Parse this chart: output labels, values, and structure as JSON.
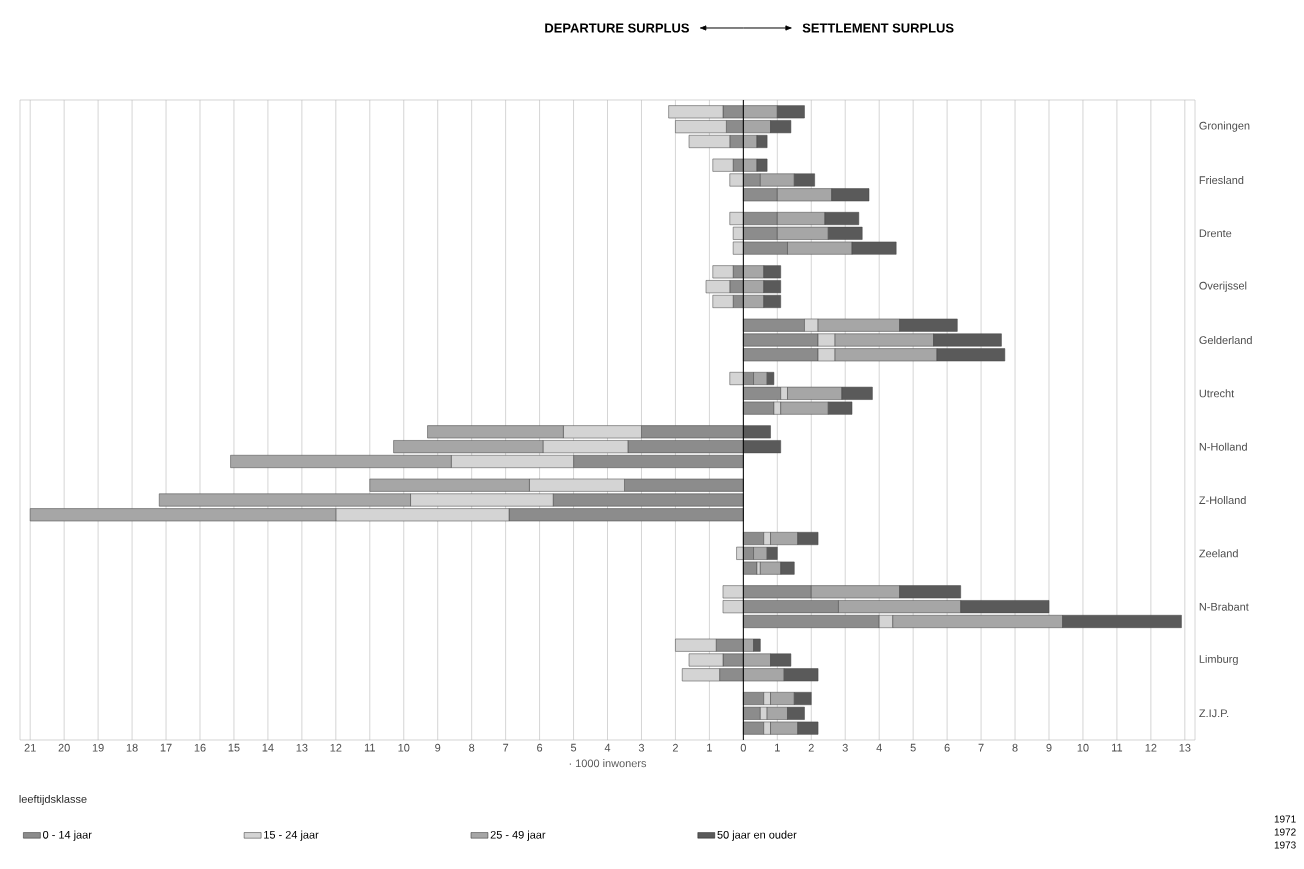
{
  "chart_data": {
    "type": "bar",
    "orientation": "horizontal",
    "stacked": true,
    "categories": [
      null,
      "Groningen",
      null,
      null,
      "Friesland",
      null,
      null,
      "Drente",
      null,
      null,
      "Overijssel",
      null,
      null,
      "Gelderland",
      null,
      null,
      "Utrecht",
      null,
      null,
      "N-Holland",
      null,
      null,
      "Z-Holland",
      null,
      null,
      "Zeeland",
      null,
      null,
      "N-Brabant",
      null,
      null,
      "Limburg",
      null,
      null,
      "Z.IJ.P.",
      null
    ],
    "series": [
      {
        "name": "0 - 14 jaar",
        "color": "#8c8c8c",
        "values": [
          -0.6,
          -0.5,
          -0.4,
          -0.3,
          0.5,
          1.0,
          1.0,
          1.0,
          1.3,
          -0.3,
          -0.4,
          -0.3,
          1.8,
          2.2,
          2.2,
          0.3,
          1.1,
          0.9,
          -3.0,
          -3.4,
          -5.0,
          -3.5,
          -5.6,
          -6.9,
          0.6,
          0.3,
          0.4,
          2.0,
          2.8,
          4.0,
          -0.8,
          -0.6,
          -0.7,
          0.6,
          0.5,
          0.6
        ]
      },
      {
        "name": "15 - 24 jaar",
        "color": "#d4d4d4",
        "values": [
          -1.6,
          -1.5,
          -1.2,
          -0.6,
          -0.4,
          0,
          -0.4,
          -0.3,
          -0.3,
          -0.6,
          -0.7,
          -0.6,
          0.4,
          0.5,
          0.5,
          -0.4,
          0.2,
          0.2,
          -2.3,
          -2.5,
          -3.6,
          -2.8,
          -4.2,
          -5.1,
          0.2,
          -0.2,
          0.1,
          -0.6,
          -0.6,
          0.4,
          -1.2,
          -1.0,
          -1.1,
          0.2,
          0.2,
          0.2
        ]
      },
      {
        "name": "25 - 49 jaar",
        "color": "#a6a6a6",
        "values": [
          1.0,
          0.8,
          0.4,
          0.4,
          1.0,
          1.6,
          1.4,
          1.5,
          1.9,
          0.6,
          0.6,
          0.6,
          2.4,
          2.9,
          3.0,
          0.4,
          1.6,
          1.4,
          -4.0,
          -4.4,
          -6.5,
          -4.7,
          -7.4,
          -9.0,
          0.8,
          0.4,
          0.6,
          2.6,
          3.6,
          5.0,
          0.3,
          0.8,
          1.2,
          0.7,
          0.6,
          0.8
        ]
      },
      {
        "name": "50 jaar en ouder",
        "color": "#5a5a5a",
        "values": [
          0.8,
          0.6,
          0.3,
          0.3,
          0.6,
          1.1,
          1.0,
          1.0,
          1.3,
          0.5,
          0.5,
          0.5,
          1.7,
          2.0,
          2.0,
          0.2,
          0.9,
          0.7,
          0.8,
          1.1,
          0,
          0,
          0,
          0,
          0.6,
          0.3,
          0.4,
          1.8,
          2.6,
          3.5,
          0.2,
          0.6,
          1.0,
          0.5,
          0.5,
          0.6
        ]
      }
    ],
    "xlim": [
      -21.3,
      13.3
    ],
    "xticks": [
      {
        "value": -21,
        "label": "21"
      },
      {
        "value": -20,
        "label": "20"
      },
      {
        "value": -19,
        "label": "19"
      },
      {
        "value": -18,
        "label": "18"
      },
      {
        "value": -17,
        "label": "17"
      },
      {
        "value": -16,
        "label": "16"
      },
      {
        "value": -15,
        "label": "15"
      },
      {
        "value": -14,
        "label": "14"
      },
      {
        "value": -13,
        "label": "13"
      },
      {
        "value": -12,
        "label": "12"
      },
      {
        "value": -11,
        "label": "11"
      },
      {
        "value": -10,
        "label": "10"
      },
      {
        "value": -9,
        "label": "9"
      },
      {
        "value": -8,
        "label": "8"
      },
      {
        "value": -7,
        "label": "7"
      },
      {
        "value": -6,
        "label": "6"
      },
      {
        "value": -5,
        "label": "5"
      },
      {
        "value": -4,
        "label": "4"
      },
      {
        "value": -3,
        "label": "3"
      },
      {
        "value": -2,
        "label": "2"
      },
      {
        "value": -1,
        "label": "1"
      },
      0,
      1,
      2,
      3,
      4,
      5,
      6,
      7,
      8,
      9,
      10,
      11,
      12,
      13
    ],
    "grid": "x",
    "legend": "bottom",
    "legend_title": "leeftijdsklasse",
    "xlabel": "· 1000 inwoners",
    "annotations": [
      "DEPARTURE SURPLUS",
      "SETTLEMENT SURPLUS",
      "1971",
      "1972",
      "1973"
    ]
  }
}
